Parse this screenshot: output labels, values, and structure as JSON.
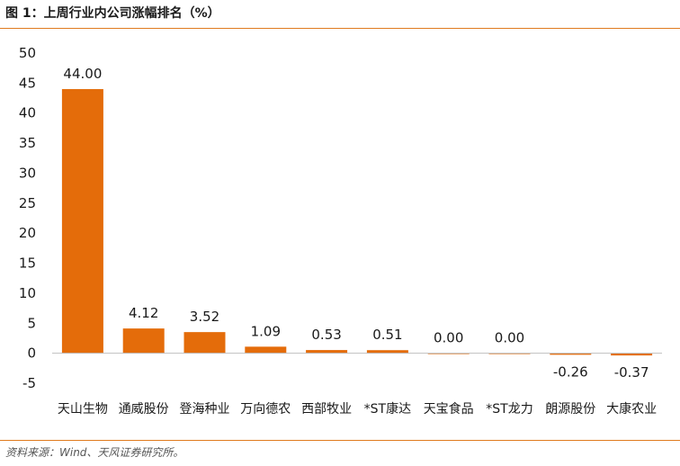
{
  "header": {
    "title": "图 1：上周行业内公司涨幅排名（%）"
  },
  "footer": {
    "source": "资料来源：Wind、天风证券研究所。"
  },
  "colors": {
    "bar": "#E46C0A",
    "rule": "#E07B1F",
    "axis": "#BFBFBF"
  },
  "chart_data": {
    "type": "bar",
    "title": "",
    "xlabel": "",
    "ylabel": "",
    "ylim": [
      -5,
      50
    ],
    "yticks": [
      "-5",
      "0",
      "5",
      "10",
      "15",
      "20",
      "25",
      "30",
      "35",
      "40",
      "45",
      "50"
    ],
    "grid": false,
    "categories": [
      "天山生物",
      "通威股份",
      "登海种业",
      "万向德农",
      "西部牧业",
      "*ST康达",
      "天宝食品",
      "*ST龙力",
      "朗源股份",
      "大康农业"
    ],
    "values": [
      44.0,
      4.12,
      3.52,
      1.09,
      0.53,
      0.51,
      0.0,
      0.0,
      -0.26,
      -0.37
    ],
    "labels": [
      "44.00",
      "4.12",
      "3.52",
      "1.09",
      "0.53",
      "0.51",
      "0.00",
      "0.00",
      "-0.26",
      "-0.37"
    ]
  }
}
